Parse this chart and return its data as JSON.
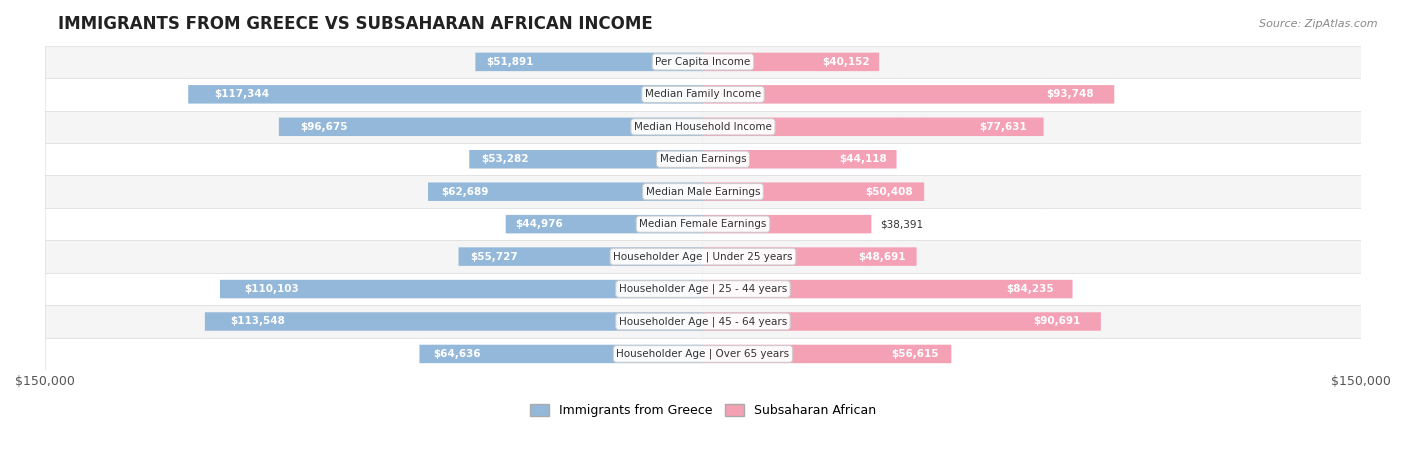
{
  "title": "IMMIGRANTS FROM GREECE VS SUBSAHARAN AFRICAN INCOME",
  "source": "Source: ZipAtlas.com",
  "categories": [
    "Per Capita Income",
    "Median Family Income",
    "Median Household Income",
    "Median Earnings",
    "Median Male Earnings",
    "Median Female Earnings",
    "Householder Age | Under 25 years",
    "Householder Age | 25 - 44 years",
    "Householder Age | 45 - 64 years",
    "Householder Age | Over 65 years"
  ],
  "greece_values": [
    51891,
    117344,
    96675,
    53282,
    62689,
    44976,
    55727,
    110103,
    113548,
    64636
  ],
  "subsaharan_values": [
    40152,
    93748,
    77631,
    44118,
    50408,
    38391,
    48691,
    84235,
    90691,
    56615
  ],
  "greece_labels": [
    "$51,891",
    "$117,344",
    "$96,675",
    "$53,282",
    "$62,689",
    "$44,976",
    "$55,727",
    "$110,103",
    "$113,548",
    "$64,636"
  ],
  "subsaharan_labels": [
    "$40,152",
    "$93,748",
    "$77,631",
    "$44,118",
    "$50,408",
    "$38,391",
    "$48,691",
    "$84,235",
    "$90,691",
    "$56,615"
  ],
  "greece_color": "#94b8d9",
  "greece_color_dark": "#6699cc",
  "subsaharan_color": "#f4a0b5",
  "subsaharan_color_dark": "#ee6688",
  "max_value": 150000,
  "row_bg_color": "#f0f0f0",
  "row_alt_bg_color": "#ffffff",
  "bar_height": 0.55,
  "legend_greece": "Immigrants from Greece",
  "legend_subsaharan": "Subsaharan African"
}
